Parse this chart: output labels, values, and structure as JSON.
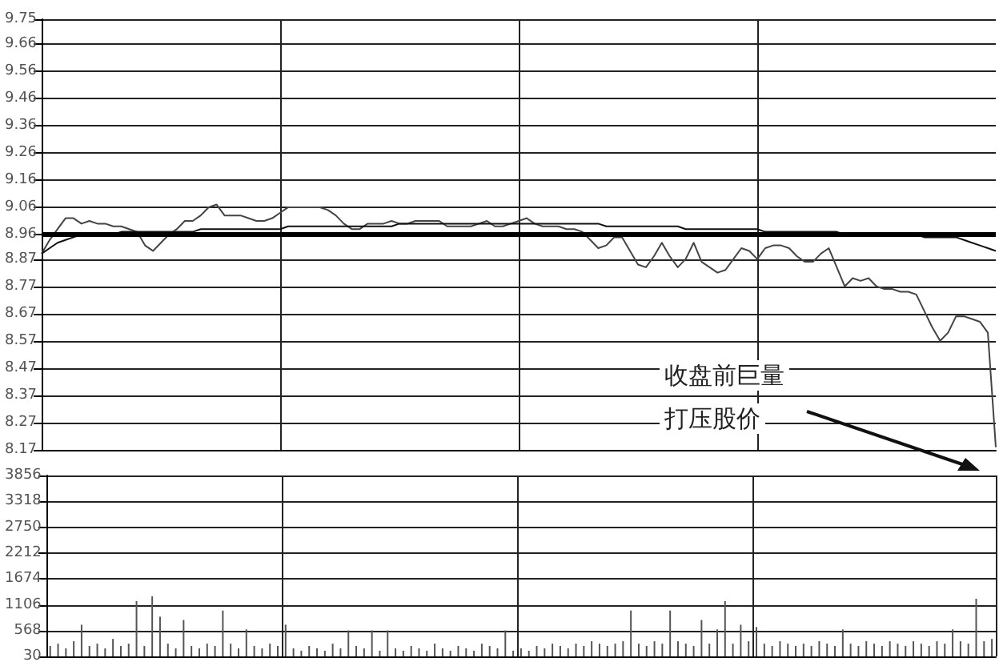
{
  "chart_data": [
    {
      "type": "line",
      "categories": [
        null,
        null,
        null,
        null,
        null,
        null,
        null,
        null,
        null,
        null,
        null,
        null,
        null,
        null,
        null,
        null,
        null,
        null,
        null,
        null,
        null,
        null,
        null,
        null,
        null,
        null,
        null,
        null,
        null,
        null,
        null,
        null,
        null,
        null,
        null,
        null,
        null,
        null,
        null,
        null,
        null,
        null,
        null,
        null,
        null,
        null,
        null,
        null,
        null,
        null,
        null,
        null,
        null,
        null,
        null,
        null,
        null,
        null,
        null,
        null,
        null,
        null,
        null,
        null,
        null,
        null,
        null,
        null,
        null,
        null,
        null,
        null,
        null,
        null,
        null,
        null,
        null,
        null,
        null,
        null,
        null,
        null,
        null,
        null,
        null,
        null,
        null,
        null,
        null,
        null,
        null,
        null,
        null,
        null,
        null,
        null,
        null,
        null,
        null,
        null,
        null,
        null,
        null,
        null,
        null,
        null,
        null,
        null,
        null,
        null,
        null,
        null,
        null,
        null,
        null,
        null,
        null,
        null,
        null,
        null,
        null
      ],
      "series": [
        {
          "color": "#444444",
          "values": [
            8.89,
            8.94,
            8.98,
            9.02,
            9.02,
            9.0,
            9.01,
            9.0,
            9.0,
            8.99,
            8.99,
            8.98,
            8.97,
            8.92,
            8.9,
            8.93,
            8.96,
            8.98,
            9.01,
            9.01,
            9.03,
            9.06,
            9.07,
            9.03,
            9.03,
            9.03,
            9.02,
            9.01,
            9.01,
            9.02,
            9.04,
            9.06,
            9.06,
            9.06,
            9.06,
            9.06,
            9.05,
            9.03,
            9.0,
            8.98,
            8.98,
            9.0,
            9.0,
            9.0,
            9.01,
            9.0,
            9.0,
            9.01,
            9.01,
            9.01,
            9.01,
            8.99,
            8.99,
            8.99,
            8.99,
            9.0,
            9.01,
            8.99,
            8.99,
            9.0,
            9.01,
            9.02,
            9.0,
            8.99,
            8.99,
            8.99,
            8.98,
            8.98,
            8.97,
            8.94,
            8.91,
            8.92,
            8.95,
            8.95,
            8.9,
            8.85,
            8.84,
            8.88,
            8.93,
            8.88,
            8.84,
            8.87,
            8.93,
            8.86,
            8.84,
            8.82,
            8.83,
            8.87,
            8.91,
            8.9,
            8.87,
            8.91,
            8.92,
            8.92,
            8.91,
            8.88,
            8.86,
            8.86,
            8.89,
            8.91,
            8.84,
            8.77,
            8.8,
            8.79,
            8.8,
            8.77,
            8.76,
            8.76,
            8.75,
            8.75,
            8.74,
            8.68,
            8.62,
            8.57,
            8.6,
            8.66,
            8.66,
            8.65,
            8.64,
            8.6,
            8.18
          ]
        },
        {
          "color": "#111111",
          "values": [
            8.89,
            8.91,
            8.93,
            8.94,
            8.95,
            8.96,
            8.96,
            8.96,
            8.96,
            8.96,
            8.97,
            8.97,
            8.97,
            8.97,
            8.97,
            8.97,
            8.97,
            8.97,
            8.97,
            8.97,
            8.98,
            8.98,
            8.98,
            8.98,
            8.98,
            8.98,
            8.98,
            8.98,
            8.98,
            8.98,
            8.98,
            8.99,
            8.99,
            8.99,
            8.99,
            8.99,
            8.99,
            8.99,
            8.99,
            8.99,
            8.99,
            8.99,
            8.99,
            8.99,
            8.99,
            9.0,
            9.0,
            9.0,
            9.0,
            9.0,
            9.0,
            9.0,
            9.0,
            9.0,
            9.0,
            9.0,
            9.0,
            9.0,
            9.0,
            9.0,
            9.0,
            9.0,
            9.0,
            9.0,
            9.0,
            9.0,
            9.0,
            9.0,
            9.0,
            9.0,
            9.0,
            8.99,
            8.99,
            8.99,
            8.99,
            8.99,
            8.99,
            8.99,
            8.99,
            8.99,
            8.99,
            8.98,
            8.98,
            8.98,
            8.98,
            8.98,
            8.98,
            8.98,
            8.98,
            8.98,
            8.98,
            8.97,
            8.97,
            8.97,
            8.97,
            8.97,
            8.97,
            8.97,
            8.97,
            8.97,
            8.97,
            8.96,
            8.96,
            8.96,
            8.96,
            8.96,
            8.96,
            8.96,
            8.96,
            8.96,
            8.96,
            8.95,
            8.95,
            8.95,
            8.95,
            8.95,
            8.94,
            8.93,
            8.92,
            8.91,
            8.9
          ]
        }
      ],
      "ylim": [
        8.17,
        9.75
      ],
      "yticks": [
        8.17,
        8.27,
        8.37,
        8.47,
        8.57,
        8.67,
        8.77,
        8.87,
        8.96,
        9.06,
        9.16,
        9.26,
        9.36,
        9.46,
        9.56,
        9.66,
        9.75
      ],
      "ref_lines": [
        {
          "axis": "y",
          "value": 8.96,
          "color": "#000000"
        }
      ],
      "annotations": [
        "收盘前巨量",
        "打压股价"
      ],
      "grid": true,
      "line_style": "solid",
      "tick_labels": "y"
    },
    {
      "type": "bar",
      "categories": [
        null,
        null,
        null,
        null,
        null,
        null,
        null,
        null,
        null,
        null,
        null,
        null,
        null,
        null,
        null,
        null,
        null,
        null,
        null,
        null,
        null,
        null,
        null,
        null,
        null,
        null,
        null,
        null,
        null,
        null,
        null,
        null,
        null,
        null,
        null,
        null,
        null,
        null,
        null,
        null,
        null,
        null,
        null,
        null,
        null,
        null,
        null,
        null,
        null,
        null,
        null,
        null,
        null,
        null,
        null,
        null,
        null,
        null,
        null,
        null,
        null,
        null,
        null,
        null,
        null,
        null,
        null,
        null,
        null,
        null,
        null,
        null,
        null,
        null,
        null,
        null,
        null,
        null,
        null,
        null,
        null,
        null,
        null,
        null,
        null,
        null,
        null,
        null,
        null,
        null,
        null,
        null,
        null,
        null,
        null,
        null,
        null,
        null,
        null,
        null,
        null,
        null,
        null,
        null,
        null,
        null,
        null,
        null,
        null,
        null,
        null,
        null,
        null,
        null,
        null,
        null,
        null,
        null,
        null,
        null,
        null
      ],
      "color": "#555555",
      "values": [
        250,
        300,
        200,
        350,
        700,
        250,
        300,
        200,
        400,
        250,
        300,
        1200,
        250,
        1300,
        870,
        300,
        200,
        800,
        250,
        200,
        300,
        250,
        1000,
        300,
        200,
        600,
        250,
        200,
        300,
        250,
        700,
        200,
        150,
        250,
        200,
        150,
        300,
        200,
        580,
        250,
        200,
        580,
        150,
        580,
        200,
        150,
        250,
        200,
        150,
        300,
        200,
        150,
        250,
        200,
        150,
        300,
        250,
        200,
        580,
        150,
        200,
        150,
        250,
        200,
        300,
        250,
        200,
        300,
        250,
        350,
        300,
        250,
        300,
        350,
        1000,
        300,
        250,
        350,
        300,
        1000,
        350,
        300,
        250,
        800,
        300,
        600,
        1200,
        300,
        700,
        350,
        650,
        300,
        250,
        350,
        300,
        250,
        300,
        250,
        350,
        300,
        250,
        600,
        300,
        250,
        350,
        300,
        250,
        350,
        300,
        250,
        350,
        300,
        250,
        350,
        300,
        600,
        350,
        300,
        1250,
        350,
        400
      ],
      "ylim": [
        30,
        3856
      ],
      "yticks": [
        30,
        568,
        1106,
        1674,
        2212,
        2750,
        3318,
        3856
      ],
      "grid": true,
      "tick_labels": "y"
    }
  ]
}
